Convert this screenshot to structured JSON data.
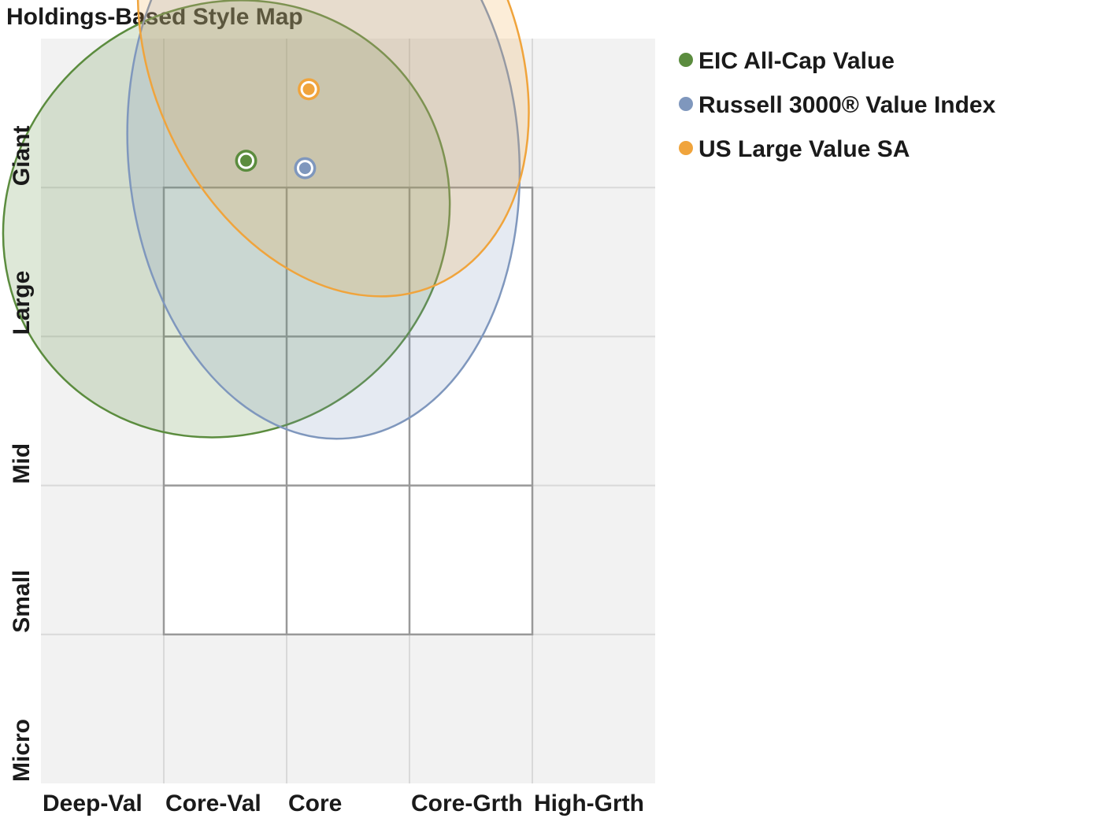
{
  "chart_data": {
    "type": "scatter",
    "title": "Holdings-Based Style Map",
    "xlabel": "",
    "ylabel": "",
    "x_categories": [
      "Deep-Val",
      "Core-Val",
      "Core",
      "Core-Grth",
      "High-Grth"
    ],
    "y_categories": [
      "Giant",
      "Large",
      "Mid",
      "Small",
      "Micro"
    ],
    "xlim": [
      -200,
      300
    ],
    "ylim": [
      -200,
      300
    ],
    "grid": true,
    "legend_position": "right",
    "series": [
      {
        "name": "EIC All-Cap Value",
        "color": "#5b8c3e",
        "centroid": {
          "x": -33,
          "y": 218
        },
        "ellipse": {
          "cx": -49,
          "cy": 179,
          "rx": 186,
          "ry": 143,
          "rotation": -36
        }
      },
      {
        "name": "Russell 3000® Value Index",
        "color": "#7f97bd",
        "centroid": {
          "x": 15,
          "y": 213
        },
        "ellipse": {
          "cx": 30,
          "cy": 223,
          "rx": 159,
          "ry": 192,
          "rotation": -5
        }
      },
      {
        "name": "US Large Value SA",
        "color": "#f0a43c",
        "centroid": {
          "x": 18,
          "y": 266
        },
        "ellipse": {
          "cx": 38,
          "cy": 290,
          "rx": 148,
          "ry": 170,
          "rotation": -24
        }
      }
    ]
  }
}
